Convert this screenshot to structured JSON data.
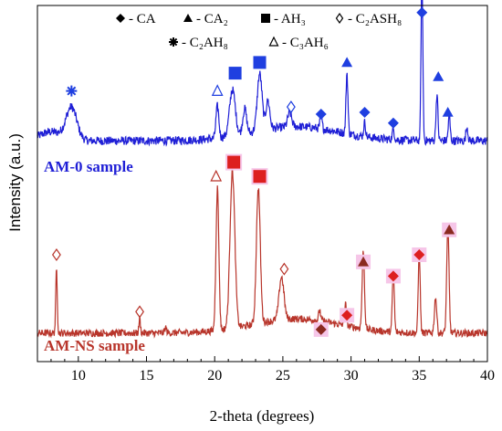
{
  "chart_data": {
    "type": "line",
    "xlabel": "2-theta (degrees)",
    "ylabel": "Intensity (a.u.)",
    "xlim": [
      7,
      40
    ],
    "ylim": [
      0,
      100
    ],
    "x_ticks": [
      10,
      15,
      20,
      25,
      30,
      35,
      40
    ],
    "legend": {
      "placement": "top",
      "entries": [
        {
          "symbol": "diamond",
          "label": "- CA"
        },
        {
          "symbol": "triangle",
          "label": "- CA₂"
        },
        {
          "symbol": "square",
          "label": "- AH₃"
        },
        {
          "symbol": "open-diamond",
          "label": "- C₂ASH₈"
        },
        {
          "symbol": "asterisk",
          "label": "- C₂AH₈"
        },
        {
          "symbol": "open-triangle",
          "label": "- C₃AH₆"
        }
      ]
    },
    "series": [
      {
        "name": "AM-0 sample",
        "color": "#1f1fd6",
        "baseline": 62,
        "noise": 1.2,
        "peaks": [
          {
            "x": 9.5,
            "h": 9,
            "w": 0.55
          },
          {
            "x": 20.2,
            "h": 9,
            "w": 0.15
          },
          {
            "x": 21.3,
            "h": 13,
            "w": 0.3
          },
          {
            "x": 22.2,
            "h": 7,
            "w": 0.2
          },
          {
            "x": 23.3,
            "h": 16,
            "w": 0.25
          },
          {
            "x": 23.9,
            "h": 8,
            "w": 0.2
          },
          {
            "x": 25.5,
            "h": 4,
            "w": 0.2
          },
          {
            "x": 27.8,
            "h": 4,
            "w": 0.1
          },
          {
            "x": 29.7,
            "h": 17,
            "w": 0.1
          },
          {
            "x": 31.0,
            "h": 4,
            "w": 0.1
          },
          {
            "x": 33.1,
            "h": 3,
            "w": 0.1
          },
          {
            "x": 35.2,
            "h": 48,
            "w": 0.09
          },
          {
            "x": 36.3,
            "h": 13,
            "w": 0.1
          },
          {
            "x": 37.2,
            "h": 7,
            "w": 0.1
          },
          {
            "x": 38.5,
            "h": 4,
            "w": 0.1
          }
        ],
        "markers": [
          {
            "symbol": "asterisk",
            "x": 9.5,
            "y": 76
          },
          {
            "symbol": "open-triangle",
            "x": 20.2,
            "y": 76
          },
          {
            "symbol": "square",
            "x": 21.5,
            "y": 81
          },
          {
            "symbol": "square",
            "x": 23.3,
            "y": 84
          },
          {
            "symbol": "open-diamond",
            "x": 25.6,
            "y": 71.5
          },
          {
            "symbol": "diamond",
            "x": 27.8,
            "y": 69.5
          },
          {
            "symbol": "triangle",
            "x": 29.7,
            "y": 84
          },
          {
            "symbol": "diamond",
            "x": 31.0,
            "y": 70
          },
          {
            "symbol": "diamond",
            "x": 33.1,
            "y": 67
          },
          {
            "symbol": "diamond",
            "x": 35.2,
            "y": 98
          },
          {
            "symbol": "triangle",
            "x": 36.4,
            "y": 80
          },
          {
            "symbol": "triangle",
            "x": 37.1,
            "y": 70
          }
        ]
      },
      {
        "name": "AM-NS sample",
        "color": "#b8352b",
        "baseline": 8,
        "noise": 1.0,
        "peaks": [
          {
            "x": 8.4,
            "h": 18,
            "w": 0.08
          },
          {
            "x": 14.5,
            "h": 4,
            "w": 0.08
          },
          {
            "x": 16.4,
            "h": 1.5,
            "w": 0.1
          },
          {
            "x": 20.2,
            "h": 40,
            "w": 0.15
          },
          {
            "x": 21.3,
            "h": 44,
            "w": 0.25
          },
          {
            "x": 23.2,
            "h": 38,
            "w": 0.2
          },
          {
            "x": 24.9,
            "h": 12,
            "w": 0.25
          },
          {
            "x": 27.7,
            "h": 3,
            "w": 0.1
          },
          {
            "x": 29.6,
            "h": 6,
            "w": 0.1
          },
          {
            "x": 30.9,
            "h": 22,
            "w": 0.12
          },
          {
            "x": 33.1,
            "h": 17,
            "w": 0.1
          },
          {
            "x": 35.0,
            "h": 23,
            "w": 0.1
          },
          {
            "x": 36.2,
            "h": 10,
            "w": 0.12
          },
          {
            "x": 37.1,
            "h": 30,
            "w": 0.12
          }
        ],
        "markers": [
          {
            "symbol": "open-diamond",
            "x": 8.4,
            "y": 30
          },
          {
            "symbol": "open-diamond",
            "x": 14.5,
            "y": 14
          },
          {
            "symbol": "open-triangle",
            "x": 20.1,
            "y": 52
          },
          {
            "symbol": "square",
            "x": 21.4,
            "y": 56
          },
          {
            "symbol": "square",
            "x": 23.3,
            "y": 52
          },
          {
            "symbol": "open-diamond",
            "x": 25.1,
            "y": 26
          },
          {
            "symbol": "diamond",
            "x": 27.8,
            "y": 9
          },
          {
            "symbol": "diamond",
            "x": 29.7,
            "y": 13
          },
          {
            "symbol": "triangle",
            "x": 30.9,
            "y": 28
          },
          {
            "symbol": "diamond",
            "x": 33.1,
            "y": 24
          },
          {
            "symbol": "diamond",
            "x": 35.0,
            "y": 30
          },
          {
            "symbol": "triangle",
            "x": 37.2,
            "y": 37
          }
        ]
      }
    ]
  },
  "colors": {
    "am0": "#1f1fd6",
    "amns": "#b8352b",
    "am0_marker": "#1f3fe0",
    "amns_marker": "#dd1f1f",
    "amns_marker_dark": "#8a2a20"
  }
}
